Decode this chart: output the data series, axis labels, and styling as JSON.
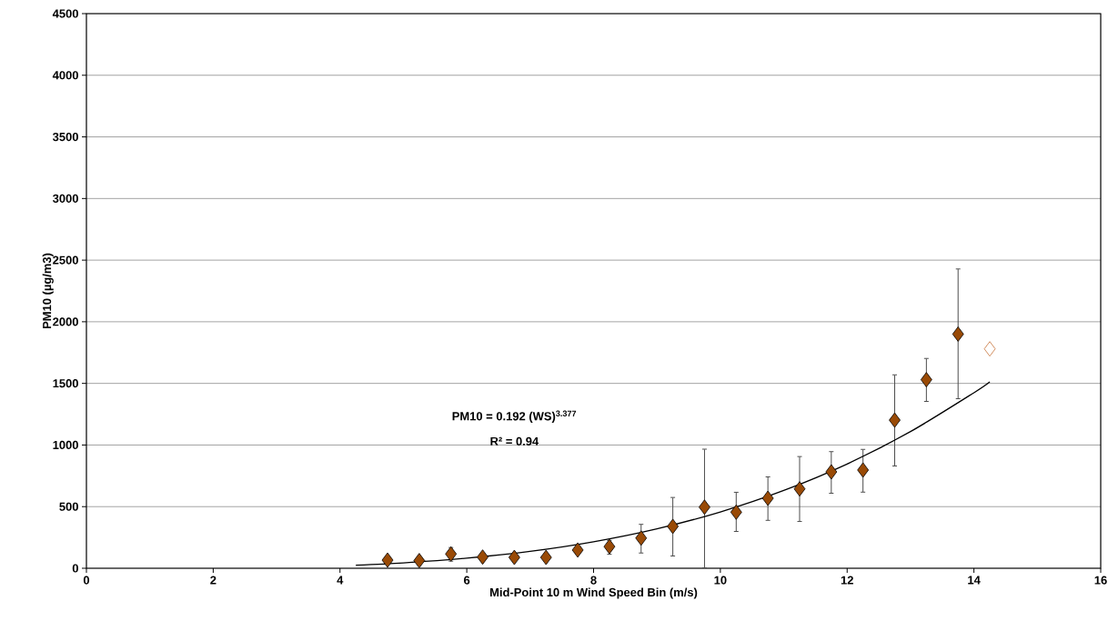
{
  "chart_data": {
    "type": "scatter",
    "xlabel": "Mid-Point 10 m Wind Speed Bin (m/s)",
    "ylabel": "PM10 (µg/m3)",
    "annotations": [
      "PM10 = 0.192 (WS)$^{3.377}$",
      "R² = 0.94"
    ],
    "xlim": [
      0,
      16
    ],
    "ylim": [
      0,
      4500
    ],
    "xticks": [
      0,
      2,
      4,
      6,
      8,
      10,
      12,
      14,
      16
    ],
    "yticks": [
      0,
      500,
      1000,
      1500,
      2000,
      2500,
      3000,
      3500,
      4000,
      4500
    ],
    "grid": "y",
    "marker": "diamond",
    "series": [
      {
        "color": "#994a06",
        "x": [
          4.75,
          5.25,
          5.75,
          6.25,
          6.75,
          7.25,
          7.75,
          8.25,
          8.75,
          9.25,
          9.75,
          10.25,
          10.75,
          11.25,
          11.75,
          12.25,
          12.75,
          13.25,
          13.75
        ],
        "values": [
          66,
          62,
          116,
          91,
          88,
          88,
          148,
          176,
          245,
          340,
          496,
          455,
          568,
          644,
          782,
          797,
          1202,
          1530,
          1900
        ],
        "errors": [
          null,
          null,
          [
            54,
            172
          ],
          null,
          null,
          null,
          null,
          [
            110,
            230
          ],
          [
            120,
            360
          ],
          [
            96,
            578
          ],
          [
            0,
            970
          ],
          [
            295,
            620
          ],
          [
            385,
            745
          ],
          [
            376,
            910
          ],
          [
            605,
            950
          ],
          [
            614,
            968
          ],
          [
            826,
            1573
          ],
          [
            1350,
            1706
          ],
          [
            1372,
            2432
          ]
        ]
      },
      {
        "color": "#c8733a",
        "x": [
          14.25
        ],
        "values": [
          1780
        ]
      },
      {
        "type": "line",
        "marker": "none",
        "color": "#000000",
        "x": [
          4.25,
          5,
          6,
          7,
          8,
          9,
          10,
          11,
          12,
          13,
          14,
          14.25
        ],
        "values": [
          25,
          44,
          82,
          137,
          215,
          320,
          457,
          631,
          846,
          1109,
          1424,
          1512
        ]
      }
    ]
  }
}
